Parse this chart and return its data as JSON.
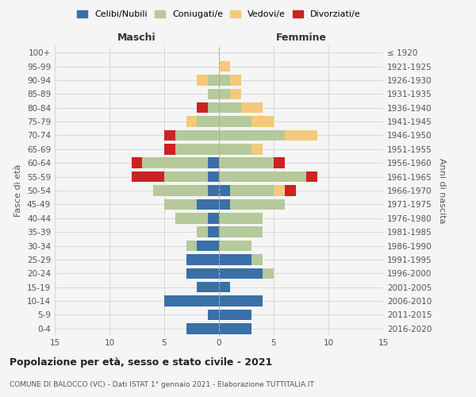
{
  "age_groups": [
    "0-4",
    "5-9",
    "10-14",
    "15-19",
    "20-24",
    "25-29",
    "30-34",
    "35-39",
    "40-44",
    "45-49",
    "50-54",
    "55-59",
    "60-64",
    "65-69",
    "70-74",
    "75-79",
    "80-84",
    "85-89",
    "90-94",
    "95-99",
    "100+"
  ],
  "birth_years": [
    "2016-2020",
    "2011-2015",
    "2006-2010",
    "2001-2005",
    "1996-2000",
    "1991-1995",
    "1986-1990",
    "1981-1985",
    "1976-1980",
    "1971-1975",
    "1966-1970",
    "1961-1965",
    "1956-1960",
    "1951-1955",
    "1946-1950",
    "1941-1945",
    "1936-1940",
    "1931-1935",
    "1926-1930",
    "1921-1925",
    "≤ 1920"
  ],
  "male": {
    "celibi": [
      3,
      1,
      5,
      2,
      3,
      3,
      2,
      1,
      1,
      2,
      1,
      1,
      1,
      0,
      0,
      0,
      0,
      0,
      0,
      0,
      0
    ],
    "coniugati": [
      0,
      0,
      0,
      0,
      0,
      0,
      1,
      1,
      3,
      3,
      5,
      4,
      6,
      4,
      4,
      2,
      1,
      1,
      1,
      0,
      0
    ],
    "vedovi": [
      0,
      0,
      0,
      0,
      0,
      0,
      0,
      0,
      0,
      0,
      0,
      0,
      0,
      0,
      0,
      1,
      0,
      0,
      1,
      0,
      0
    ],
    "divorziati": [
      0,
      0,
      0,
      0,
      0,
      0,
      0,
      0,
      0,
      0,
      0,
      3,
      1,
      1,
      1,
      0,
      1,
      0,
      0,
      0,
      0
    ]
  },
  "female": {
    "nubili": [
      3,
      3,
      4,
      1,
      4,
      3,
      0,
      0,
      0,
      1,
      1,
      0,
      0,
      0,
      0,
      0,
      0,
      0,
      0,
      0,
      0
    ],
    "coniugate": [
      0,
      0,
      0,
      0,
      1,
      1,
      3,
      4,
      4,
      5,
      4,
      8,
      5,
      3,
      6,
      3,
      2,
      1,
      1,
      0,
      0
    ],
    "vedove": [
      0,
      0,
      0,
      0,
      0,
      0,
      0,
      0,
      0,
      0,
      1,
      0,
      0,
      1,
      3,
      2,
      2,
      1,
      1,
      1,
      0
    ],
    "divorziate": [
      0,
      0,
      0,
      0,
      0,
      0,
      0,
      0,
      0,
      0,
      1,
      1,
      1,
      0,
      0,
      0,
      0,
      0,
      0,
      0,
      0
    ]
  },
  "colors": {
    "celibi": "#3a6fa8",
    "coniugati": "#b5c99a",
    "vedovi": "#f4c97a",
    "divorziati": "#cc2222"
  },
  "xlim": 15,
  "title": "Popolazione per età, sesso e stato civile - 2021",
  "subtitle": "COMUNE DI BALOCCO (VC) - Dati ISTAT 1° gennaio 2021 - Elaborazione TUTTITALIA.IT",
  "ylabel_left": "Fasce di età",
  "ylabel_right": "Anni di nascita",
  "xlabel_left": "Maschi",
  "xlabel_right": "Femmine",
  "bg_color": "#f5f5f5",
  "grid_color": "#cccccc"
}
